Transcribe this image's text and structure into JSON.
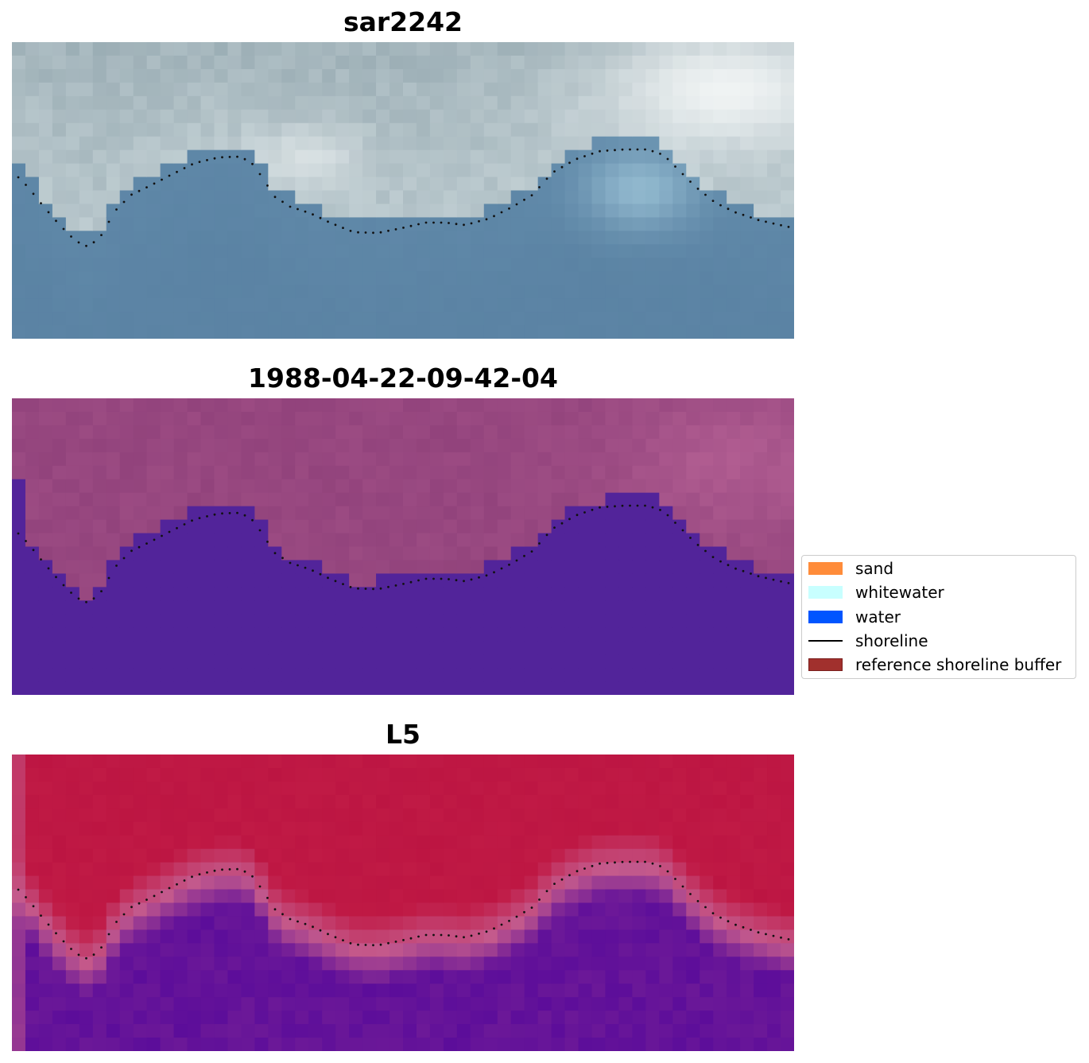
{
  "panels": [
    {
      "title": "sar2242",
      "kind": "rgb",
      "palette": {
        "top": "#8fa3ab",
        "top_light": "#c7d4d8",
        "bright": "#f3f6f6",
        "lower": "#5f88a8",
        "bottom": "#5a82a3",
        "teal": "#9ec5d8"
      }
    },
    {
      "title": "1988-04-22-09-42-04",
      "kind": "classification",
      "palette": {
        "top": "#8c3e78",
        "top_light": "#b25e92",
        "water": "#52249a"
      }
    },
    {
      "title": "L5",
      "kind": "index",
      "palette": {
        "top": "#c01a45",
        "mid": "#c45a8c",
        "water": "#5c0d9a"
      }
    }
  ],
  "legend": {
    "items": [
      {
        "label": "sand",
        "color": "#ff8c3a",
        "kind": "patch"
      },
      {
        "label": "whitewater",
        "color": "#c8ffff",
        "kind": "patch"
      },
      {
        "label": "water",
        "color": "#0055ff",
        "kind": "patch"
      },
      {
        "label": "shoreline",
        "color": "#000000",
        "kind": "line"
      },
      {
        "label": "reference shoreline buffer",
        "color": "#a1302d",
        "kind": "patch"
      }
    ]
  }
}
